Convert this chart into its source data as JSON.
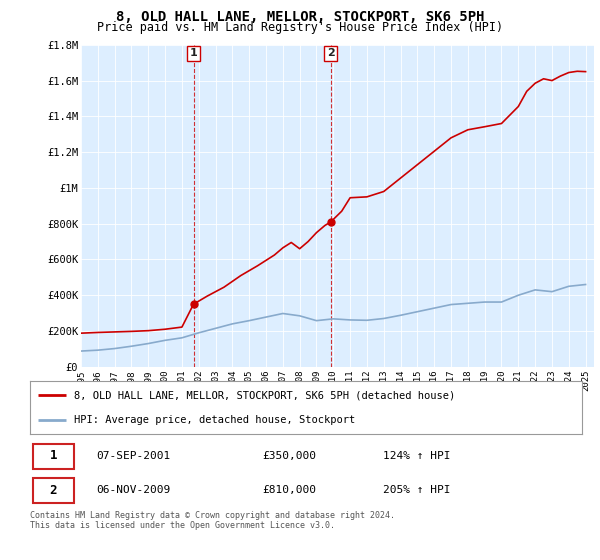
{
  "title": "8, OLD HALL LANE, MELLOR, STOCKPORT, SK6 5PH",
  "subtitle": "Price paid vs. HM Land Registry's House Price Index (HPI)",
  "legend_line1": "8, OLD HALL LANE, MELLOR, STOCKPORT, SK6 5PH (detached house)",
  "legend_line2": "HPI: Average price, detached house, Stockport",
  "sale1_label": "1",
  "sale1_date": "07-SEP-2001",
  "sale1_price": "£350,000",
  "sale1_hpi": "124% ↑ HPI",
  "sale1_year": 2001.69,
  "sale1_value": 350000,
  "sale2_label": "2",
  "sale2_date": "06-NOV-2009",
  "sale2_price": "£810,000",
  "sale2_hpi": "205% ↑ HPI",
  "sale2_year": 2009.85,
  "sale2_value": 810000,
  "footer": "Contains HM Land Registry data © Crown copyright and database right 2024.\nThis data is licensed under the Open Government Licence v3.0.",
  "red_color": "#cc0000",
  "blue_color": "#88aacc",
  "background_color": "#ffffff",
  "plot_bg_color": "#ddeeff",
  "ylim": [
    0,
    1800000
  ],
  "xlim_start": 1995.0,
  "xlim_end": 2025.5,
  "years_hpi": [
    1995,
    1996,
    1997,
    1998,
    1999,
    2000,
    2001,
    2002,
    2003,
    2004,
    2005,
    2006,
    2007,
    2008,
    2009,
    2010,
    2011,
    2012,
    2013,
    2014,
    2015,
    2016,
    2017,
    2018,
    2019,
    2020,
    2021,
    2022,
    2023,
    2024,
    2025
  ],
  "hpi_values": [
    88000,
    93000,
    102000,
    115000,
    130000,
    148000,
    162000,
    190000,
    215000,
    240000,
    258000,
    278000,
    298000,
    285000,
    258000,
    268000,
    262000,
    260000,
    270000,
    288000,
    308000,
    328000,
    348000,
    355000,
    362000,
    362000,
    400000,
    430000,
    420000,
    450000,
    460000
  ],
  "red_key_years": [
    1995.0,
    1996.0,
    1997.0,
    1998.0,
    1999.0,
    2000.0,
    2001.0,
    2001.69,
    2002.5,
    2003.5,
    2004.5,
    2005.5,
    2006.5,
    2007.0,
    2007.5,
    2008.0,
    2008.5,
    2009.0,
    2009.5,
    2009.85,
    2010.5,
    2011.0,
    2012.0,
    2013.0,
    2014.0,
    2015.0,
    2016.0,
    2017.0,
    2018.0,
    2019.0,
    2020.0,
    2021.0,
    2021.5,
    2022.0,
    2022.5,
    2023.0,
    2023.5,
    2024.0,
    2024.5,
    2025.0
  ],
  "red_key_vals": [
    188000,
    192000,
    195000,
    198000,
    202000,
    210000,
    222000,
    350000,
    395000,
    445000,
    510000,
    565000,
    625000,
    665000,
    695000,
    660000,
    700000,
    750000,
    790000,
    810000,
    870000,
    945000,
    950000,
    980000,
    1055000,
    1130000,
    1205000,
    1280000,
    1325000,
    1342000,
    1360000,
    1455000,
    1540000,
    1585000,
    1610000,
    1600000,
    1625000,
    1645000,
    1652000,
    1650000
  ]
}
